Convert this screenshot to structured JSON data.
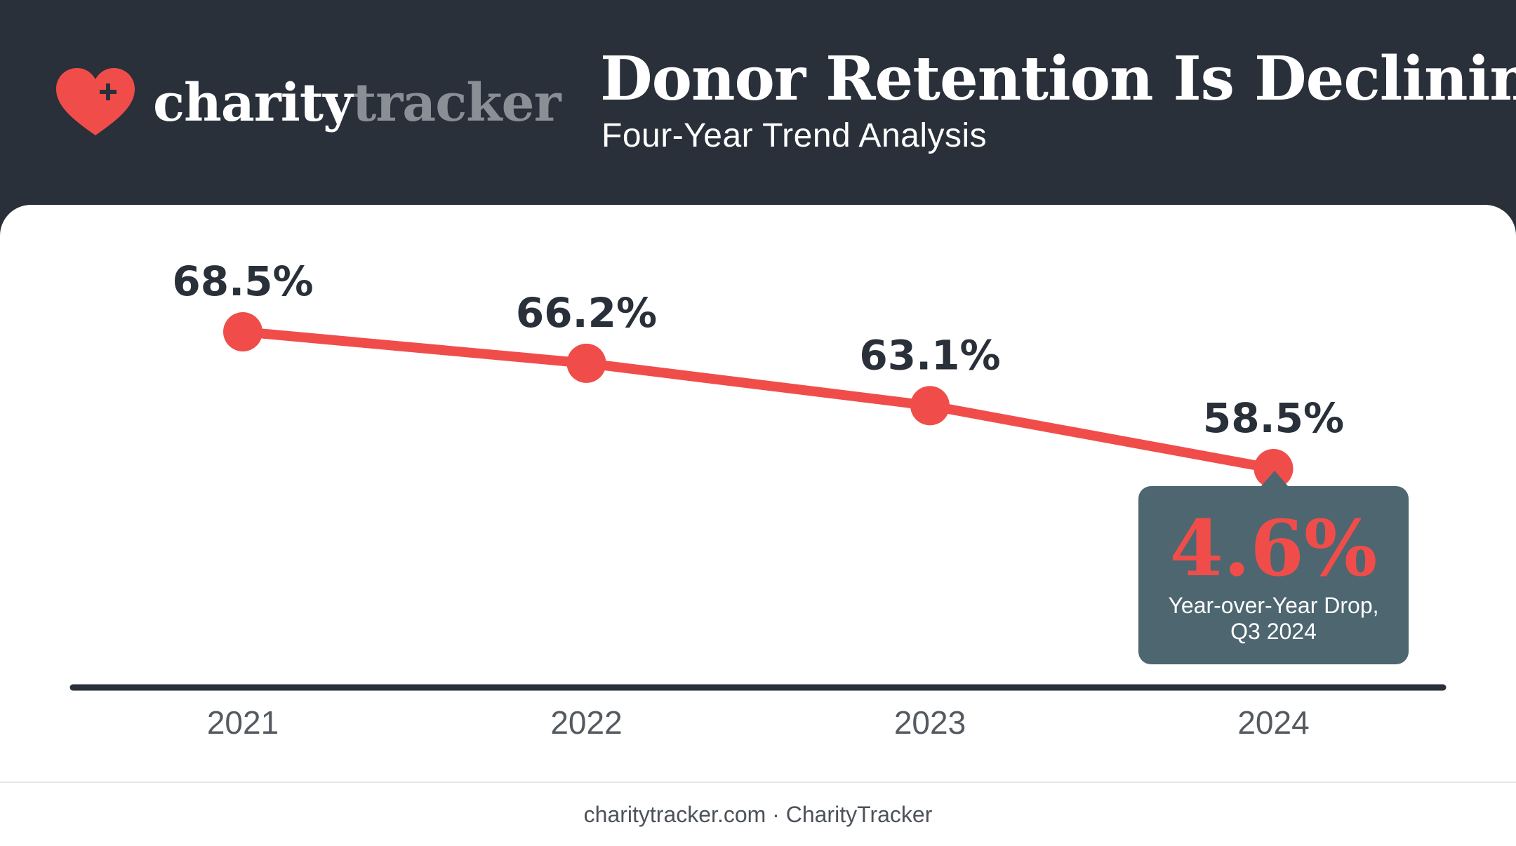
{
  "brand": {
    "name_part1": "charity",
    "name_part2": "tracker",
    "heart_icon": "heart-plus-icon"
  },
  "header": {
    "title": "Donor Retention Is Declining",
    "subtitle": "Four-Year Trend Analysis"
  },
  "colors": {
    "accent": "#f04d4a",
    "dark": "#29303a",
    "callout_bg": "#4d6670"
  },
  "chart_data": {
    "type": "line",
    "title": "Donor Retention Is Declining",
    "subtitle": "Four-Year Trend Analysis",
    "categories": [
      "2021",
      "2022",
      "2023",
      "2024"
    ],
    "series": [
      {
        "values": [
          68.5,
          66.2,
          63.1,
          58.5
        ],
        "labels": [
          "68.5%",
          "66.2%",
          "63.1%",
          "58.5%"
        ]
      }
    ],
    "grid": false
  },
  "callout": {
    "value": "4.6%",
    "caption": "Year-over-Year Drop, Q3 2024"
  },
  "footer": {
    "text": "charitytracker.com · CharityTracker"
  }
}
